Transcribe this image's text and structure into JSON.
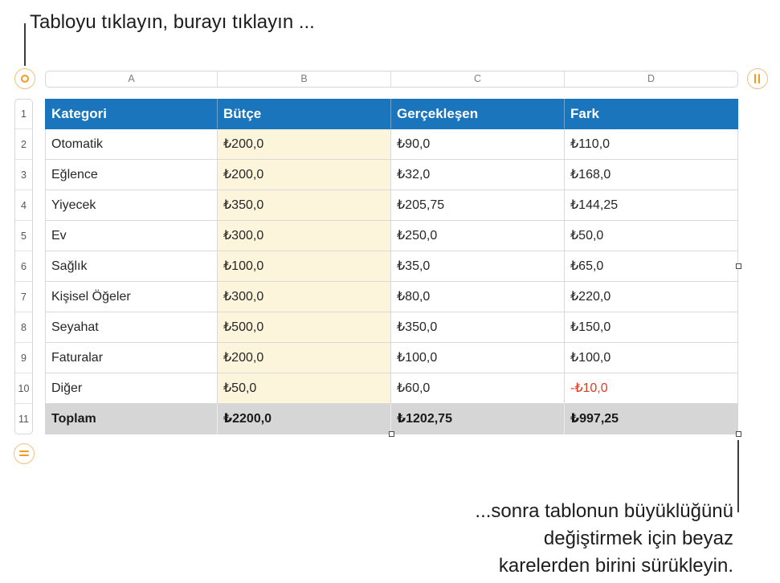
{
  "callouts": {
    "top_text": "Tabloyu tıklayın, burayı tıklayın ...",
    "bottom_lines": [
      "...sonra tablonun büyüklüğünü",
      "değiştirmek için beyaz",
      "karelerden birini sürükleyin."
    ]
  },
  "table": {
    "column_letters": [
      "A",
      "B",
      "C",
      "D"
    ],
    "row_numbers": [
      "1",
      "2",
      "3",
      "4",
      "5",
      "6",
      "7",
      "8",
      "9",
      "10",
      "11"
    ],
    "header": [
      "Kategori",
      "Bütçe",
      "Gerçekleşen",
      "Fark"
    ],
    "rows": [
      [
        "Otomatik",
        "₺200,0",
        "₺90,0",
        "₺110,0"
      ],
      [
        "Eğlence",
        "₺200,0",
        "₺32,0",
        "₺168,0"
      ],
      [
        "Yiyecek",
        "₺350,0",
        "₺205,75",
        "₺144,25"
      ],
      [
        "Ev",
        "₺300,0",
        "₺250,0",
        "₺50,0"
      ],
      [
        "Sağlık",
        "₺100,0",
        "₺35,0",
        "₺65,0"
      ],
      [
        "Kişisel Öğeler",
        "₺300,0",
        "₺80,0",
        "₺220,0"
      ],
      [
        "Seyahat",
        "₺500,0",
        "₺350,0",
        "₺150,0"
      ],
      [
        "Faturalar",
        "₺200,0",
        "₺100,0",
        "₺100,0"
      ],
      [
        "Diğer",
        "₺50,0",
        "₺60,0",
        "-₺10,0"
      ]
    ],
    "footer": [
      "Toplam",
      "₺2200,0",
      "₺1202,75",
      "₺997,25"
    ]
  },
  "icons": {
    "select_table": "select-table-icon",
    "add_columns": "add-columns-icon",
    "add_rows": "add-rows-icon"
  },
  "colors": {
    "header_bg": "#1b75bc",
    "header_text": "#ffffff",
    "highlight_column_bg": "#fdf4dc",
    "footer_bg": "#d6d6d6",
    "negative_text": "#e23b1e",
    "grid_line": "#d9d9d9",
    "handle_accent": "#f39a1f",
    "handle_border": "#f2c07c",
    "callout_text": "#1d1d1f",
    "leader_line": "#3c3c3c"
  }
}
